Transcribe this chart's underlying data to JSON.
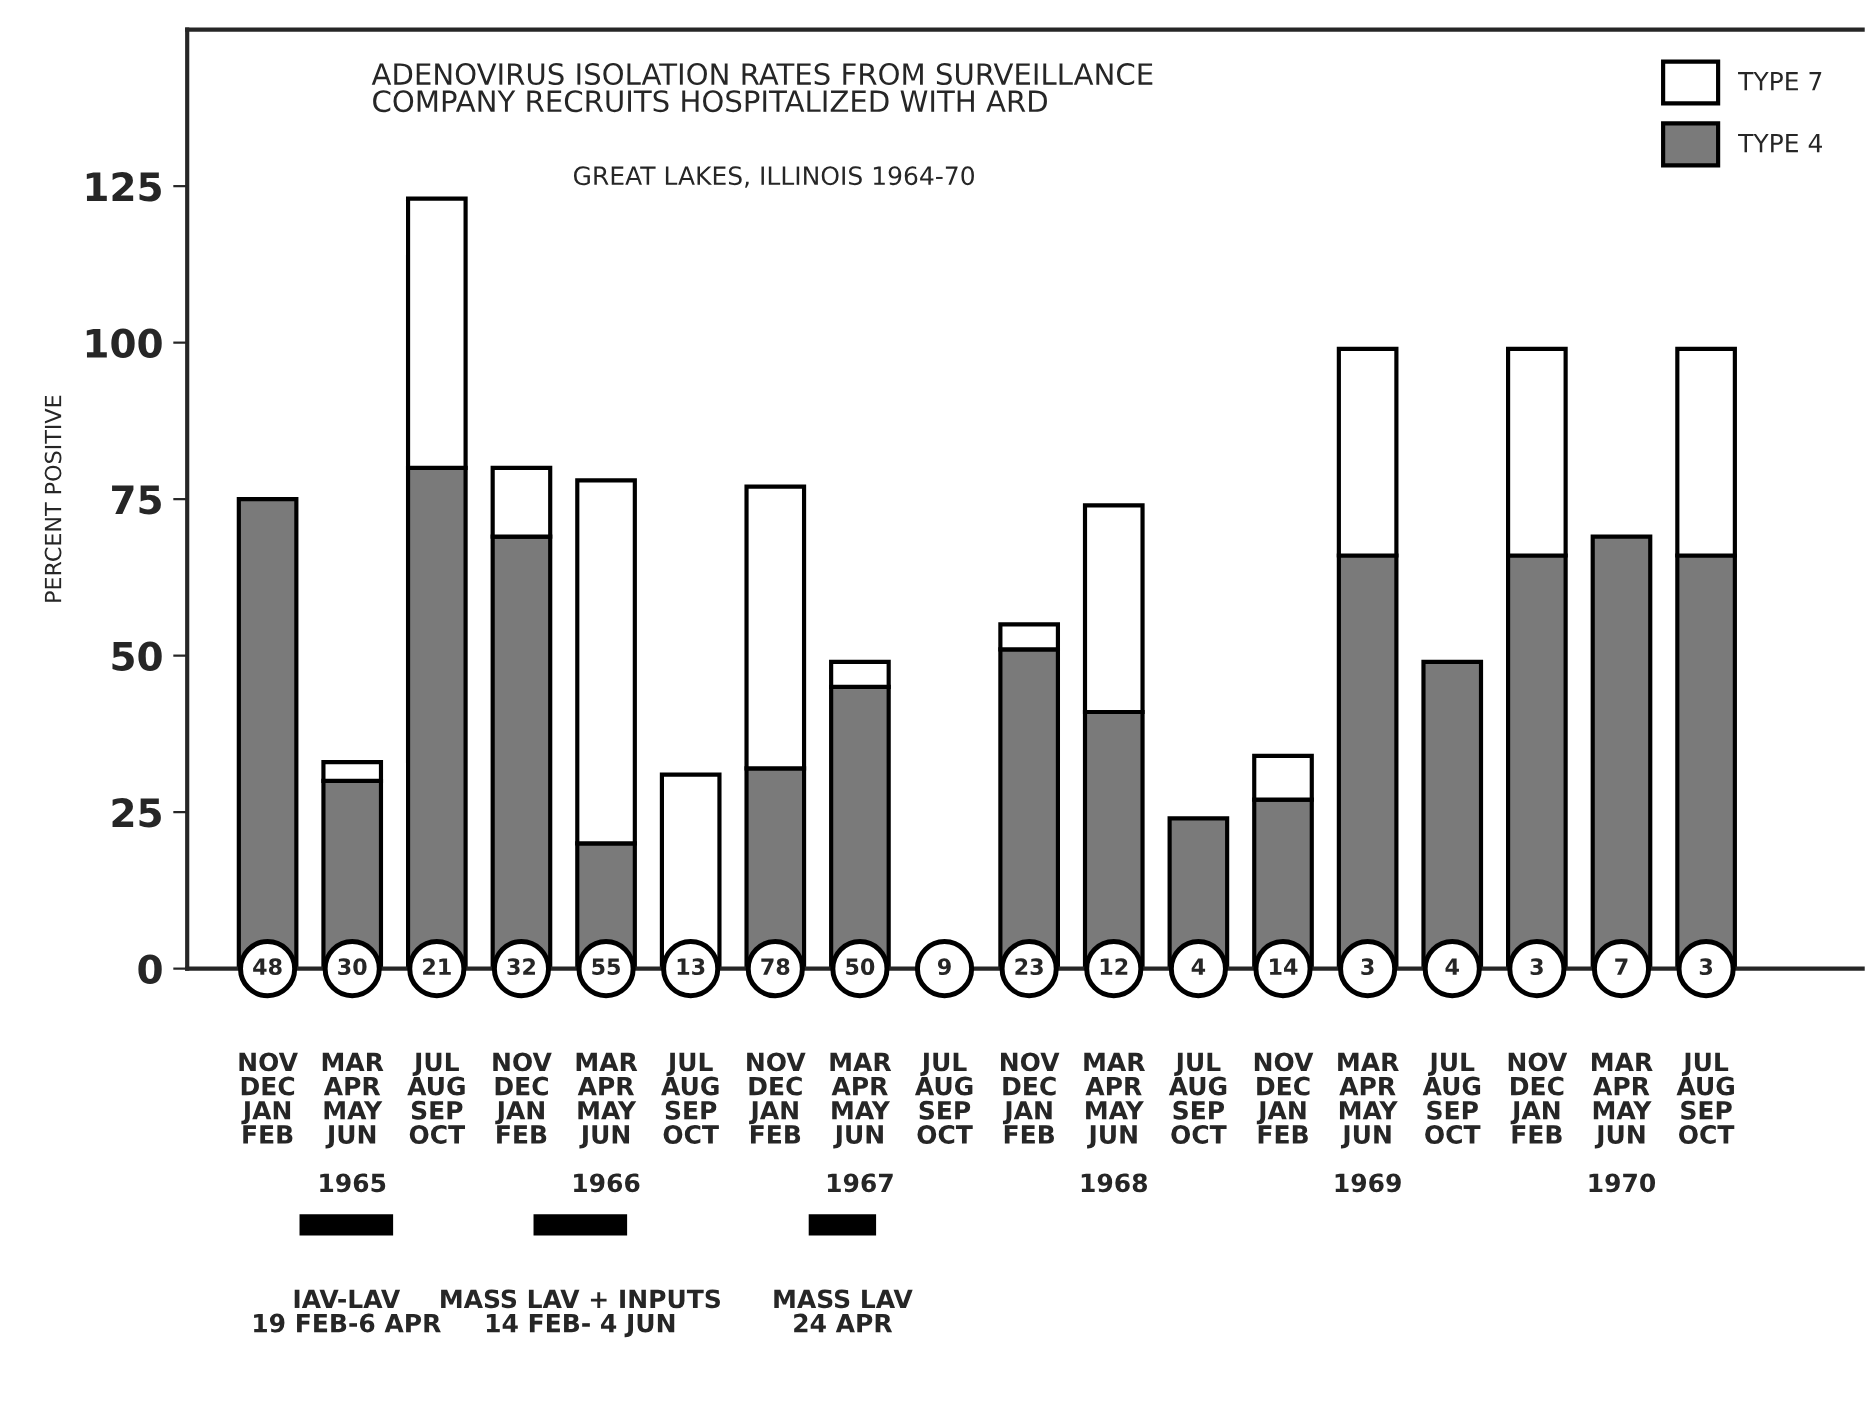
{
  "chart_data": {
    "type": "bar",
    "stacked": true,
    "title": "ADENOVIRUS ISOLATION RATES FROM SURVEILLANCE\nCOMPANY RECRUITS HOSPITALIZED WITH ARD",
    "subtitle": "GREAT LAKES, ILLINOIS 1964-70",
    "ylabel": "PERCENT POSITIVE",
    "categories": [
      "NOV\nDEC\nJAN\nFEB",
      "MAR\nAPR\nMAY\nJUN\n\n1965",
      "JUL\nAUG\nSEP\nOCT",
      "NOV\nDEC\nJAN\nFEB",
      "MAR\nAPR\nMAY\nJUN\n\n1966",
      "JUL\nAUG\nSEP\nOCT",
      "NOV\nDEC\nJAN\nFEB",
      "MAR\nAPR\nMAY\nJUN\n\n1967",
      "JUL\nAUG\nSEP\nOCT",
      "NOV\nDEC\nJAN\nFEB",
      "MAR\nAPR\nMAY\nJUN\n\n1968",
      "JUL\nAUG\nSEP\nOCT",
      "NOV\nDEC\nJAN\nFEB",
      "MAR\nAPR\nMAY\nJUN\n\n1969",
      "JUL\nAUG\nSEP\nOCT",
      "NOV\nDEC\nJAN\nFEB",
      "MAR\nAPR\nMAY\nJUN\n\n1970",
      "JUL\nAUG\nSEP\nOCT"
    ],
    "series": [
      {
        "name": "TYPE 4",
        "color": "#7a7a7a",
        "values": [
          75,
          30,
          80,
          69,
          20,
          0,
          32,
          45,
          0,
          51,
          41,
          24,
          27,
          66,
          49,
          66,
          69,
          66
        ]
      },
      {
        "name": "TYPE 7",
        "color": "#ffffff",
        "values": [
          0,
          3,
          43,
          11,
          58,
          31,
          45,
          4,
          0,
          4,
          33,
          0,
          7,
          33,
          0,
          33,
          0,
          33
        ]
      }
    ],
    "ylim": [
      0,
      150
    ],
    "yticks": [
      0,
      25,
      50,
      75,
      100,
      125
    ],
    "grid": false,
    "legend": "top right",
    "annotations": [
      "48",
      "30",
      "21",
      "32",
      "55",
      "13",
      "78",
      "50",
      "9",
      "23",
      "12",
      "4",
      "14",
      "3",
      "4",
      "3",
      "7",
      "3",
      "IAV-LAV\n19 FEB-6 APR",
      "MASS LAV + INPUTS\n14 FEB- 4 JUN",
      "MASS LAV\n24 APR"
    ]
  }
}
